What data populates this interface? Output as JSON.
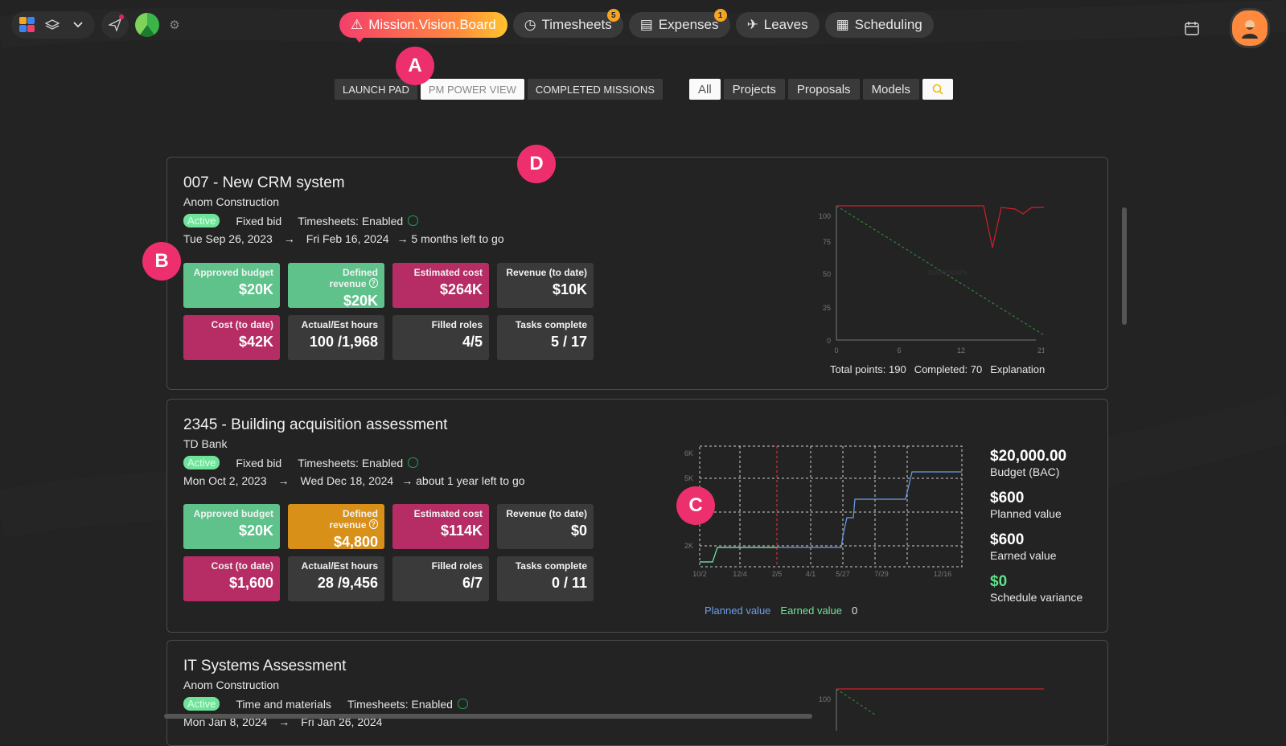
{
  "topnav": {
    "tabs": [
      {
        "label": "Mission.Vision.Board",
        "badge": ""
      },
      {
        "label": "Timesheets",
        "badge": "5"
      },
      {
        "label": "Expenses",
        "badge": "1"
      },
      {
        "label": "Leaves",
        "badge": ""
      },
      {
        "label": "Scheduling",
        "badge": ""
      }
    ]
  },
  "subnav": {
    "views": [
      "LAUNCH PAD",
      "PM POWER VIEW",
      "COMPLETED MISSIONS"
    ],
    "filters": [
      "All",
      "Projects",
      "Proposals",
      "Models"
    ]
  },
  "markers": {
    "a": "A",
    "b": "B",
    "c": "C",
    "d": "D"
  },
  "projects": [
    {
      "title": "007 - New CRM system",
      "client": "Anom Construction",
      "status": "Active",
      "billing": "Fixed bid",
      "timesheets": "Timesheets: Enabled",
      "start": "Tue Sep 26, 2023",
      "arrow": "→",
      "end": "Fri Feb 16, 2024",
      "remaining": "→ 5 months left to go",
      "tiles": [
        {
          "label": "Approved budget",
          "value": "$20K"
        },
        {
          "label": "Defined revenue",
          "value": "$20K"
        },
        {
          "label": "Estimated cost",
          "value": "$264K"
        },
        {
          "label": "Revenue (to date)",
          "value": "$10K"
        },
        {
          "label": "Cost (to date)",
          "value": "$42K"
        },
        {
          "label": "Actual/Est hours",
          "value": "100 /1,968"
        },
        {
          "label": "Filled roles",
          "value": "4/5"
        },
        {
          "label": "Tasks complete",
          "value": "5 / 17"
        }
      ],
      "burndown": {
        "y_ticks": [
          "100",
          "75",
          "50",
          "25",
          "0"
        ],
        "x_ticks": [
          "0",
          "6",
          "12",
          "21"
        ],
        "mid_label": "BURNDOWN",
        "footer": "Total points: 190",
        "completed": "Completed: 70",
        "explanation": "Explanation"
      }
    },
    {
      "title": "2345 - Building acquisition assessment",
      "client": "TD Bank",
      "status": "Active",
      "billing": "Fixed bid",
      "timesheets": "Timesheets: Enabled",
      "start": "Mon Oct 2, 2023",
      "arrow": "→",
      "end": "Wed Dec 18, 2024",
      "remaining": "→ about 1 year left to go",
      "tiles": [
        {
          "label": "Approved budget",
          "value": "$20K"
        },
        {
          "label": "Defined revenue",
          "value": "$4,800"
        },
        {
          "label": "Estimated cost",
          "value": "$114K"
        },
        {
          "label": "Revenue (to date)",
          "value": "$0"
        },
        {
          "label": "Cost (to date)",
          "value": "$1,600"
        },
        {
          "label": "Actual/Est hours",
          "value": "28 /9,456"
        },
        {
          "label": "Filled roles",
          "value": "6/7"
        },
        {
          "label": "Tasks complete",
          "value": "0 / 11"
        }
      ],
      "ev": {
        "y_ticks": [
          "6K",
          "5K",
          "2K"
        ],
        "x_ticks": [
          "10/2",
          "12/4",
          "2/5",
          "4/1",
          "5/27",
          "7/29",
          "12/16"
        ],
        "legend_planned": "Planned value",
        "legend_earned": "Earned value",
        "legend_extra": "0",
        "budget": "$20,000.00",
        "budget_label": "Budget (BAC)",
        "planned": "$600",
        "planned_label": "Planned value",
        "earned": "$600",
        "earned_label": "Earned value",
        "variance": "$0",
        "variance_label": "Schedule variance"
      }
    },
    {
      "title": "IT Systems Assessment",
      "client": "Anom Construction",
      "status": "Active",
      "billing": "Time and materials",
      "timesheets": "Timesheets: Enabled",
      "start": "Mon Jan 8, 2024",
      "arrow": "→",
      "end": "Fri Jan 26, 2024",
      "burndown": {
        "y_ticks": [
          "100"
        ]
      }
    }
  ]
}
